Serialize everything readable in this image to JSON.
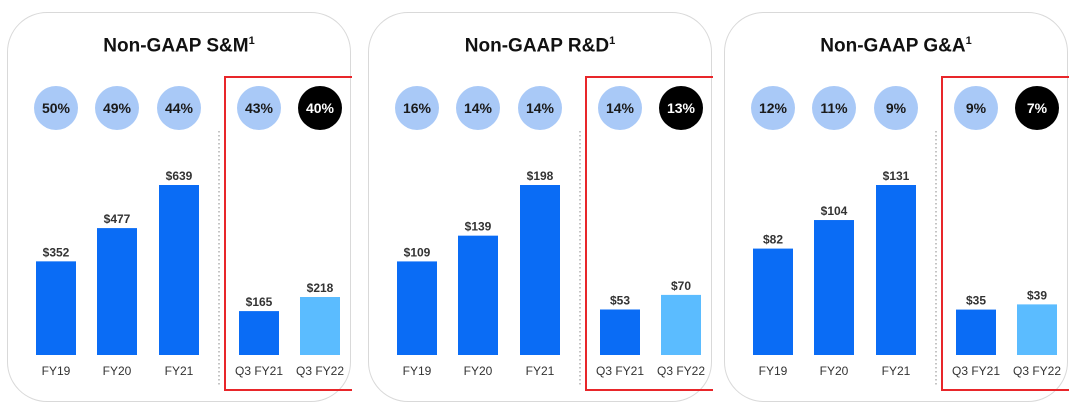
{
  "chart_data": [
    {
      "type": "bar",
      "title": "Non-GAAP S&M",
      "title_sup": "1",
      "categories": [
        "FY19",
        "FY20",
        "FY21",
        "Q3 FY21",
        "Q3 FY22"
      ],
      "values": [
        352,
        477,
        639,
        165,
        218
      ],
      "value_labels": [
        "$352",
        "$477",
        "$639",
        "$165",
        "$218"
      ],
      "percents": [
        "50%",
        "49%",
        "44%",
        "43%",
        "40%"
      ],
      "highlighted_categories": [
        "Q3 FY21",
        "Q3 FY22"
      ]
    },
    {
      "type": "bar",
      "title": "Non-GAAP R&D",
      "title_sup": "1",
      "categories": [
        "FY19",
        "FY20",
        "FY21",
        "Q3 FY21",
        "Q3 FY22"
      ],
      "values": [
        109,
        139,
        198,
        53,
        70
      ],
      "value_labels": [
        "$109",
        "$139",
        "$198",
        "$53",
        "$70"
      ],
      "percents": [
        "16%",
        "14%",
        "14%",
        "14%",
        "13%"
      ],
      "highlighted_categories": [
        "Q3 FY21",
        "Q3 FY22"
      ]
    },
    {
      "type": "bar",
      "title": "Non-GAAP G&A",
      "title_sup": "1",
      "categories": [
        "FY19",
        "FY20",
        "FY21",
        "Q3 FY21",
        "Q3 FY22"
      ],
      "values": [
        82,
        104,
        131,
        35,
        39
      ],
      "value_labels": [
        "$82",
        "$104",
        "$131",
        "$35",
        "$39"
      ],
      "percents": [
        "12%",
        "11%",
        "9%",
        "9%",
        "7%"
      ],
      "highlighted_categories": [
        "Q3 FY21",
        "Q3 FY22"
      ]
    }
  ],
  "colors": {
    "bar": "#0a6cf5",
    "bar_latest": "#5bbcff",
    "circle": "#a9c9f7",
    "circle_latest": "#000000",
    "highlight_box": "#e8262a",
    "separator": "#888888"
  }
}
